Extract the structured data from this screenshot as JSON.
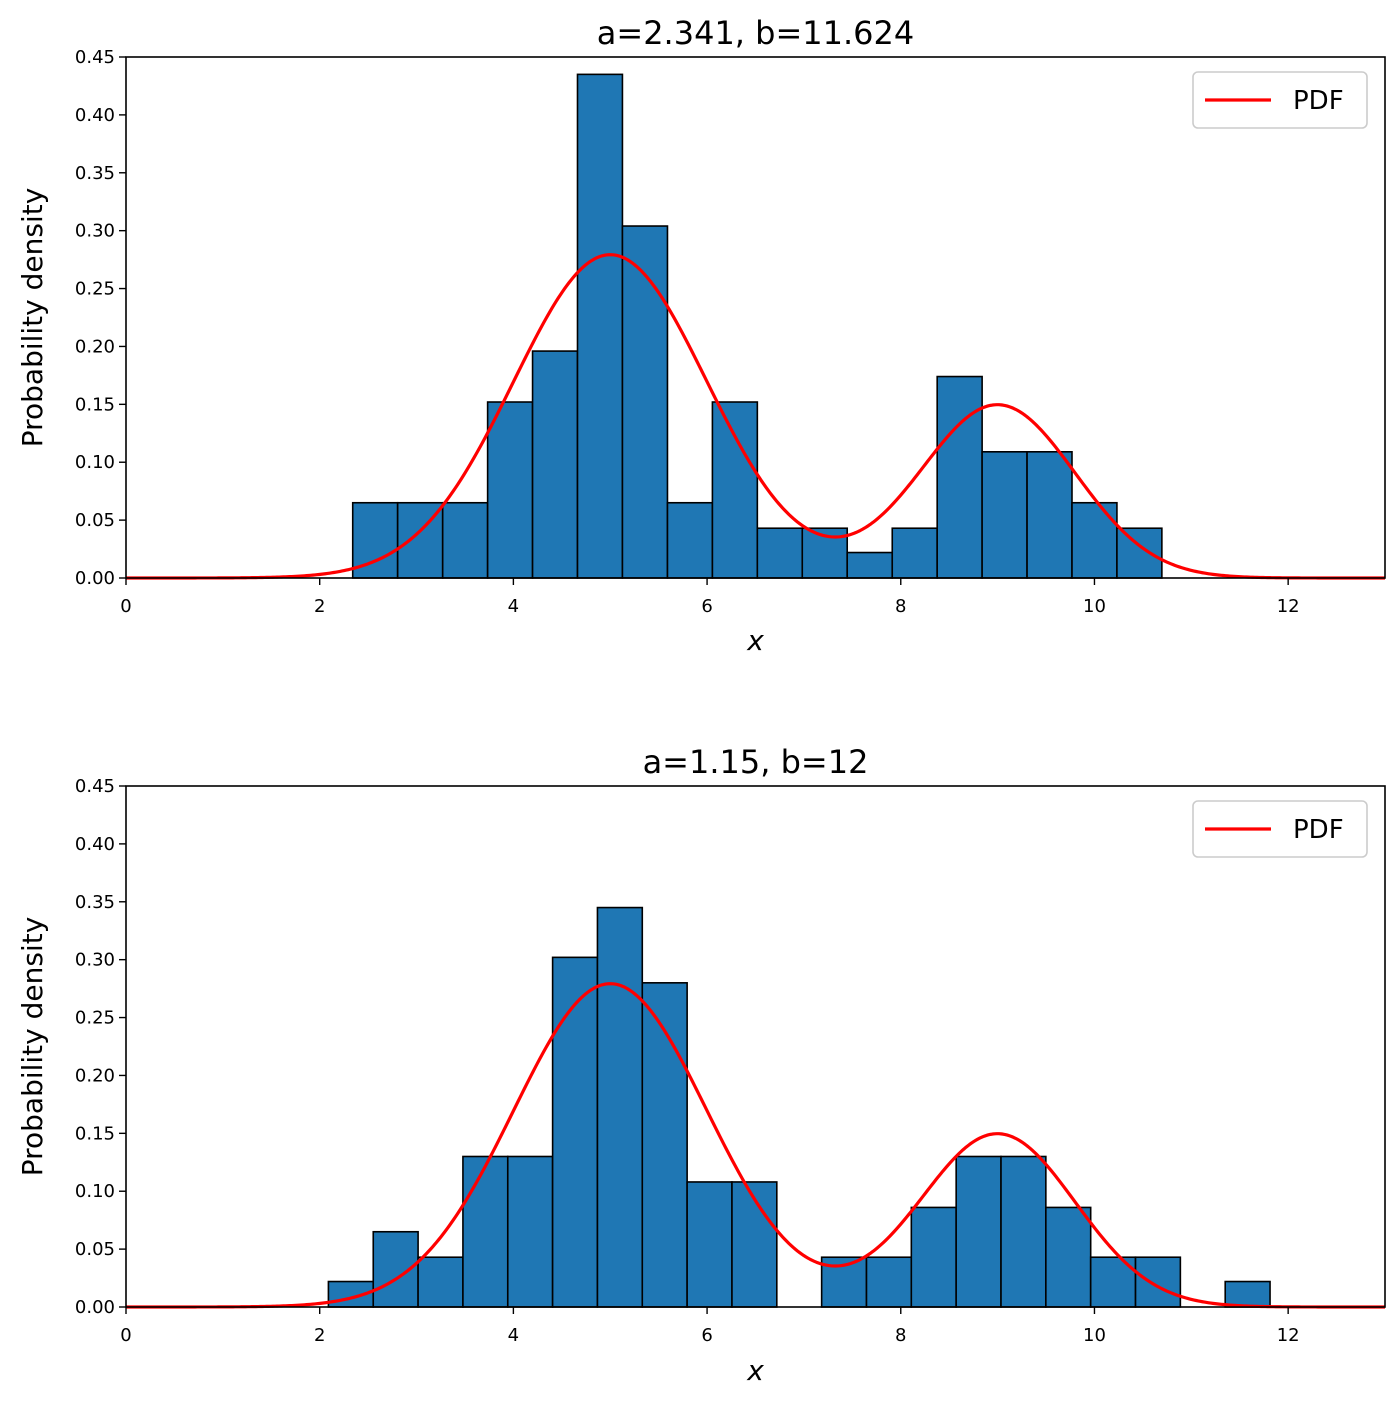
{
  "chart_data": [
    {
      "type": "bar",
      "title": "a=2.341, b=11.624",
      "xlabel": "x",
      "ylabel": "Probability density",
      "xlim": [
        0,
        13
      ],
      "ylim": [
        0,
        0.45
      ],
      "xticks": [
        0,
        2,
        4,
        6,
        8,
        10,
        12
      ],
      "xtick_labels": [
        "0",
        "2",
        "4",
        "6",
        "8",
        "10",
        "12"
      ],
      "yticks": [
        0.0,
        0.05,
        0.1,
        0.15,
        0.2,
        0.25,
        0.3,
        0.35,
        0.4,
        0.45
      ],
      "ytick_labels": [
        "0.00",
        "0.05",
        "0.10",
        "0.15",
        "0.20",
        "0.25",
        "0.30",
        "0.35",
        "0.40",
        "0.45"
      ],
      "legend": {
        "position": "upper right",
        "entries": [
          "PDF"
        ]
      },
      "grid": false,
      "bar_color": "#1f77b4",
      "bar_edge_color": "#000000",
      "pdf_color": "#ff0000",
      "histogram": {
        "bin_edges": [
          2.341,
          2.805,
          3.27,
          3.734,
          4.198,
          4.662,
          5.126,
          5.591,
          6.055,
          6.519,
          6.983,
          7.447,
          7.912,
          8.376,
          8.84,
          9.304,
          9.768,
          10.232,
          10.696
        ],
        "density": [
          0.065,
          0.065,
          0.065,
          0.152,
          0.196,
          0.435,
          0.304,
          0.065,
          0.152,
          0.043,
          0.043,
          0.022,
          0.043,
          0.174,
          0.109,
          0.109,
          0.065,
          0.043
        ]
      },
      "pdf_series": {
        "name": "PDF",
        "components": [
          {
            "weight": 0.7,
            "mean": 5.0,
            "sd": 1.0
          },
          {
            "weight": 0.3,
            "mean": 9.0,
            "sd": 0.8
          }
        ]
      }
    },
    {
      "type": "bar",
      "title": "a=1.15, b=12",
      "xlabel": "x",
      "ylabel": "Probability density",
      "xlim": [
        0,
        13
      ],
      "ylim": [
        0,
        0.45
      ],
      "xticks": [
        0,
        2,
        4,
        6,
        8,
        10,
        12
      ],
      "xtick_labels": [
        "0",
        "2",
        "4",
        "6",
        "8",
        "10",
        "12"
      ],
      "yticks": [
        0.0,
        0.05,
        0.1,
        0.15,
        0.2,
        0.25,
        0.3,
        0.35,
        0.4,
        0.45
      ],
      "ytick_labels": [
        "0.00",
        "0.05",
        "0.10",
        "0.15",
        "0.20",
        "0.25",
        "0.30",
        "0.35",
        "0.40",
        "0.45"
      ],
      "legend": {
        "position": "upper right",
        "entries": [
          "PDF"
        ]
      },
      "grid": false,
      "bar_color": "#1f77b4",
      "bar_edge_color": "#000000",
      "pdf_color": "#ff0000",
      "histogram": {
        "bin_edges": [
          2.09,
          2.553,
          3.016,
          3.479,
          3.942,
          4.405,
          4.868,
          5.331,
          5.794,
          6.257,
          6.72,
          7.183,
          7.646,
          8.109,
          8.572,
          9.035,
          9.498,
          9.961,
          10.424,
          10.887,
          11.35,
          11.813
        ],
        "density": [
          0.022,
          0.065,
          0.043,
          0.13,
          0.13,
          0.302,
          0.345,
          0.28,
          0.108,
          0.108,
          0.0,
          0.043,
          0.043,
          0.086,
          0.13,
          0.13,
          0.086,
          0.043,
          0.043,
          0.0,
          0.022
        ]
      },
      "pdf_series": {
        "name": "PDF",
        "components": [
          {
            "weight": 0.7,
            "mean": 5.0,
            "sd": 1.0
          },
          {
            "weight": 0.3,
            "mean": 9.0,
            "sd": 0.8
          }
        ]
      }
    }
  ]
}
